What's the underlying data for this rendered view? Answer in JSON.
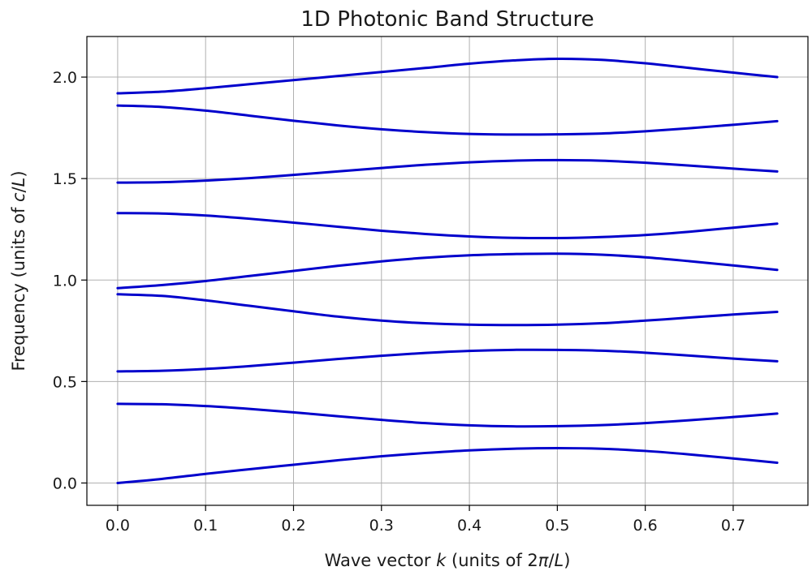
{
  "chart_data": {
    "type": "line",
    "title": "1D Photonic Band Structure",
    "xlabel_parts": [
      {
        "text": "Wave vector ",
        "italic": false
      },
      {
        "text": "k",
        "italic": true
      },
      {
        "text": " (units of 2",
        "italic": false
      },
      {
        "text": "π",
        "italic": true
      },
      {
        "text": "/",
        "italic": false
      },
      {
        "text": "L",
        "italic": true
      },
      {
        "text": ")",
        "italic": false
      }
    ],
    "ylabel_parts": [
      {
        "text": "Frequency (units of ",
        "italic": false
      },
      {
        "text": "c",
        "italic": true
      },
      {
        "text": "/",
        "italic": false
      },
      {
        "text": "L",
        "italic": true
      },
      {
        "text": ")",
        "italic": false
      }
    ],
    "xlim": [
      -0.035,
      0.785
    ],
    "ylim": [
      -0.11,
      2.2
    ],
    "x_ticks": [
      0.0,
      0.1,
      0.2,
      0.3,
      0.4,
      0.5,
      0.6,
      0.7
    ],
    "x_tick_labels": [
      "0.0",
      "0.1",
      "0.2",
      "0.3",
      "0.4",
      "0.5",
      "0.6",
      "0.7"
    ],
    "y_ticks": [
      0.0,
      0.5,
      1.0,
      1.5,
      2.0
    ],
    "y_tick_labels": [
      "0.0",
      "0.5",
      "1.0",
      "1.5",
      "2.0"
    ],
    "grid": true,
    "line_color": "#0000cc",
    "x": [
      0.0,
      0.05,
      0.1,
      0.15,
      0.2,
      0.25,
      0.3,
      0.35,
      0.4,
      0.45,
      0.5,
      0.55,
      0.6,
      0.65,
      0.7,
      0.75
    ],
    "series": [
      {
        "values": [
          0.0,
          0.02,
          0.045,
          0.068,
          0.09,
          0.112,
          0.132,
          0.148,
          0.161,
          0.169,
          0.172,
          0.169,
          0.158,
          0.141,
          0.121,
          0.1
        ]
      },
      {
        "values": [
          0.39,
          0.388,
          0.379,
          0.365,
          0.348,
          0.329,
          0.311,
          0.295,
          0.284,
          0.279,
          0.28,
          0.285,
          0.295,
          0.309,
          0.325,
          0.342
        ]
      },
      {
        "values": [
          0.55,
          0.553,
          0.562,
          0.576,
          0.593,
          0.611,
          0.627,
          0.641,
          0.651,
          0.656,
          0.656,
          0.652,
          0.642,
          0.628,
          0.613,
          0.6
        ]
      },
      {
        "values": [
          0.93,
          0.922,
          0.9,
          0.873,
          0.846,
          0.82,
          0.8,
          0.787,
          0.78,
          0.778,
          0.78,
          0.787,
          0.8,
          0.815,
          0.83,
          0.843
        ]
      },
      {
        "values": [
          0.96,
          0.975,
          0.995,
          1.02,
          1.045,
          1.07,
          1.092,
          1.11,
          1.122,
          1.128,
          1.13,
          1.125,
          1.112,
          1.093,
          1.072,
          1.05
        ]
      },
      {
        "values": [
          1.33,
          1.328,
          1.318,
          1.302,
          1.283,
          1.263,
          1.243,
          1.227,
          1.215,
          1.208,
          1.207,
          1.212,
          1.222,
          1.238,
          1.258,
          1.278
        ]
      },
      {
        "values": [
          1.48,
          1.482,
          1.49,
          1.502,
          1.518,
          1.535,
          1.552,
          1.568,
          1.58,
          1.588,
          1.591,
          1.588,
          1.578,
          1.564,
          1.549,
          1.535
        ]
      },
      {
        "values": [
          1.86,
          1.853,
          1.835,
          1.81,
          1.785,
          1.762,
          1.743,
          1.729,
          1.72,
          1.717,
          1.718,
          1.722,
          1.733,
          1.748,
          1.765,
          1.783
        ]
      },
      {
        "values": [
          1.92,
          1.928,
          1.945,
          1.965,
          1.985,
          2.005,
          2.025,
          2.045,
          2.066,
          2.082,
          2.09,
          2.085,
          2.068,
          2.045,
          2.022,
          2.0
        ]
      }
    ]
  }
}
